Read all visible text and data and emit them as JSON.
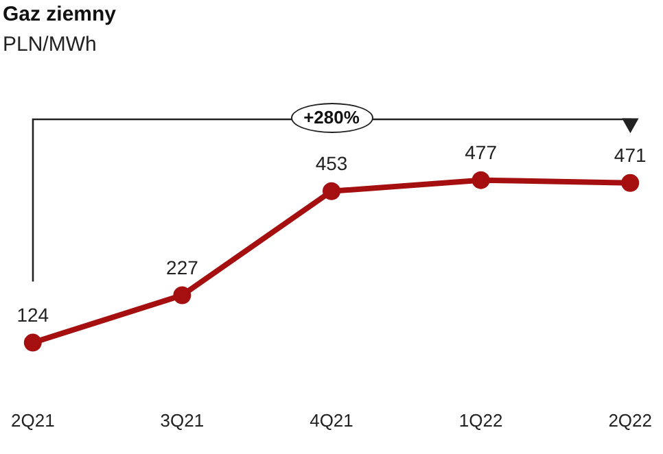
{
  "chart_data": {
    "type": "line",
    "title": "Gaz ziemny",
    "subtitle": "PLN/MWh",
    "categories": [
      "2Q21",
      "3Q21",
      "4Q21",
      "1Q22",
      "2Q22"
    ],
    "series": [
      {
        "color": "#a50f0f",
        "values": [
          124,
          227,
          453,
          477,
          471
        ]
      }
    ],
    "data_labels": true,
    "marker": "circle",
    "line_style": "solid",
    "legend": false,
    "grid": false,
    "tick_labels": "x",
    "annotations": [
      "+280%"
    ]
  }
}
